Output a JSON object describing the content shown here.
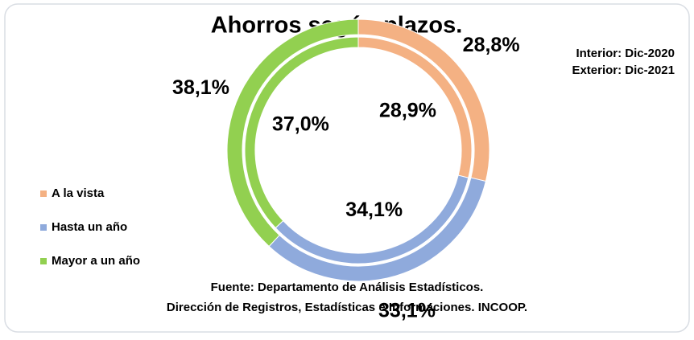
{
  "chart_data": {
    "type": "donut",
    "title": "Ahorros según plazos.",
    "categories": [
      "A la vista",
      "Hasta un año",
      "Mayor a un año"
    ],
    "colors": [
      "#f4b183",
      "#8faadc",
      "#92d050"
    ],
    "series": [
      {
        "name": "Interior: Dic-2020",
        "values": [
          28.9,
          34.1,
          37.0
        ],
        "value_labels": [
          "28,9%",
          "34,1%",
          "37,0%"
        ]
      },
      {
        "name": "Exterior: Dic-2021",
        "values": [
          28.8,
          33.1,
          38.1
        ],
        "value_labels": [
          "28,8%",
          "33,1%",
          "38,1%"
        ]
      }
    ],
    "source": [
      "Fuente: Departamento de Análisis Estadísticos.",
      "Dirección de Registros, Estadísticas e Informaciones. INCOOP."
    ]
  }
}
